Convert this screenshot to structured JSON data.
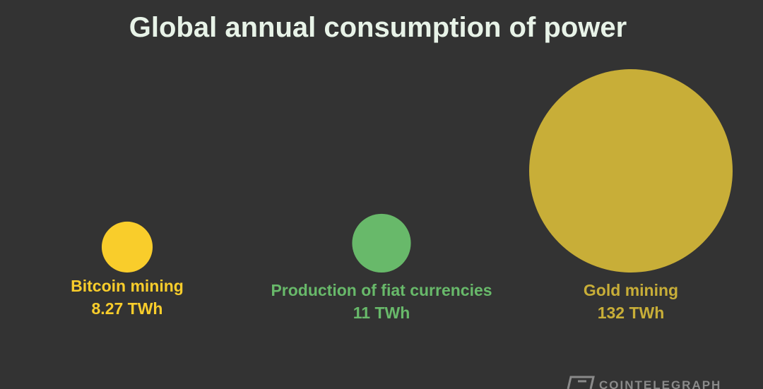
{
  "chart_data": {
    "type": "bubble",
    "title": "Global annual consumption of power",
    "categories": [
      "Bitcoin mining",
      "Production of fiat currencies",
      "Gold mining"
    ],
    "values": [
      8.27,
      11,
      132
    ],
    "value_labels": [
      "8.27 TWh",
      "11 TWh",
      "132 TWh"
    ],
    "colors": [
      "#f9cd2b",
      "#68b96a",
      "#c8ae38"
    ],
    "watermark": "COINTELEGRAPH"
  }
}
